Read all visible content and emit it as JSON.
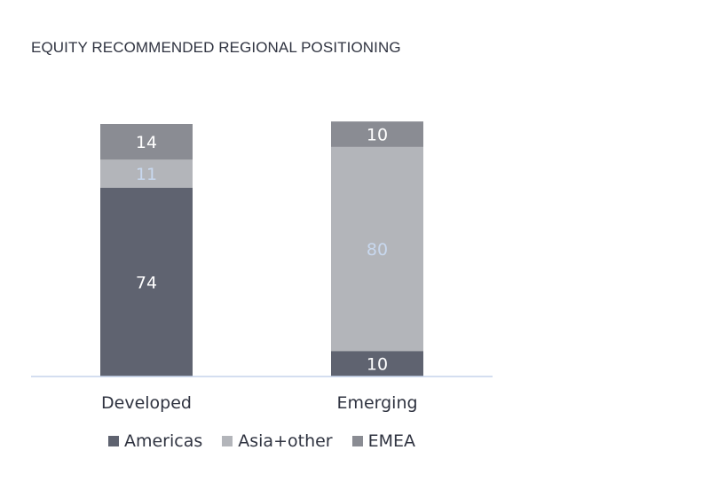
{
  "chart_data": {
    "type": "bar",
    "stacked": true,
    "title": "EQUITY RECOMMENDED REGIONAL POSITIONING",
    "categories": [
      "Developed",
      "Emerging"
    ],
    "series": [
      {
        "name": "Americas",
        "values": [
          74,
          10
        ],
        "color": "#5f6370",
        "label_color": "#ffffff"
      },
      {
        "name": "Asia+other",
        "values": [
          11,
          80
        ],
        "color": "#b3b5ba",
        "label_color": "#c8d8ef"
      },
      {
        "name": "EMEA",
        "values": [
          14,
          10
        ],
        "color": "#8a8c93",
        "label_color": "#ffffff"
      }
    ],
    "ylim": [
      0,
      99
    ],
    "axis_color": "#c5d3ec",
    "legend_position": "bottom"
  }
}
